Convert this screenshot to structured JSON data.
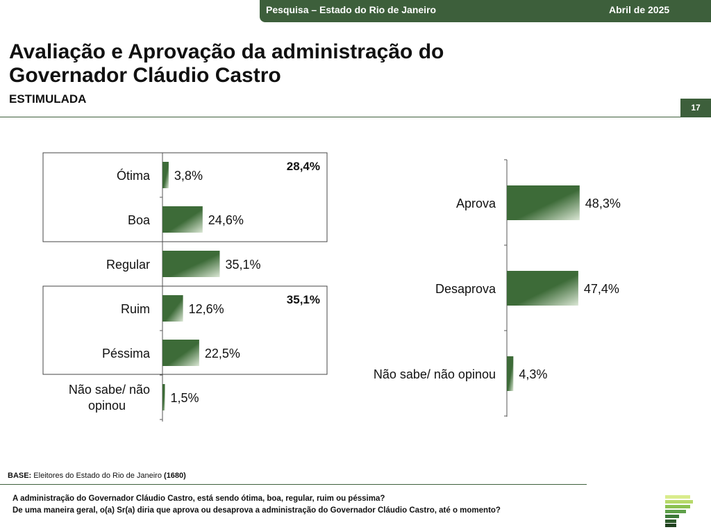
{
  "header": {
    "survey": "Pesquisa – Estado do Rio de Janeiro",
    "date": "Abril de 2025",
    "page_number": "17"
  },
  "title": {
    "line1": "Avaliação e Aprovação da administração do",
    "line2": "Governador Cláudio Castro",
    "subtitle": "ESTIMULADA"
  },
  "colors": {
    "brand_green": "#3d5f3b",
    "bar_dark": "#3d6b38",
    "bar_light": "#dbe7d5"
  },
  "chart_data": [
    {
      "type": "bar",
      "orientation": "horizontal",
      "categories": [
        "Ótima",
        "Boa",
        "Regular",
        "Ruim",
        "Péssima",
        "Não sabe/ não opinou"
      ],
      "values": [
        3.8,
        24.6,
        35.1,
        12.6,
        22.5,
        1.5
      ],
      "value_labels": [
        "3,8%",
        "24,6%",
        "35,1%",
        "12,6%",
        "22,5%",
        "1,5%"
      ],
      "groups": [
        {
          "categories": [
            "Ótima",
            "Boa"
          ],
          "total_label": "28,4%"
        },
        {
          "categories": [
            "Ruim",
            "Péssima"
          ],
          "total_label": "35,1%"
        }
      ],
      "legend": "none",
      "grid": false
    },
    {
      "type": "bar",
      "orientation": "horizontal",
      "categories": [
        "Aprova",
        "Desaprova",
        "Não sabe/ não opinou"
      ],
      "values": [
        48.3,
        47.4,
        4.3
      ],
      "value_labels": [
        "48,3%",
        "47,4%",
        "4,3%"
      ],
      "legend": "none",
      "grid": false
    }
  ],
  "footer": {
    "base_label": "BASE:",
    "base_text": "Eleitores do Estado do Rio de Janeiro",
    "base_count": "(1680)",
    "question1": "A administração do Governador Cláudio Castro, está sendo ótima, boa, regular, ruim ou péssima?",
    "question2": "De uma maneira geral, o(a) Sr(a) diria que aprova ou desaprova a administração do Governador Cláudio Castro, até o momento?"
  }
}
